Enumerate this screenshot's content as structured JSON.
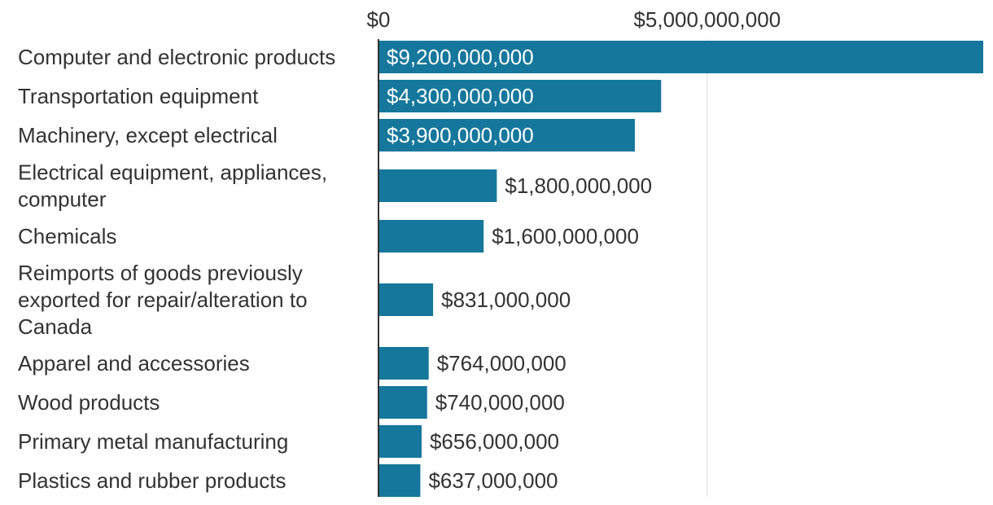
{
  "chart_data": {
    "type": "bar",
    "orientation": "horizontal",
    "categories": [
      "Computer and electronic products",
      "Transportation equipment",
      "Machinery, except electrical",
      "Electrical equipment, appliances, computer",
      "Chemicals",
      "Reimports of goods previously exported for repair/alteration to Canada",
      "Apparel and accessories",
      "Wood products",
      "Primary metal manufacturing",
      "Plastics and rubber products"
    ],
    "values": [
      9200000000,
      4300000000,
      3900000000,
      1800000000,
      1600000000,
      831000000,
      764000000,
      740000000,
      656000000,
      637000000
    ],
    "value_labels": [
      "$9,200,000,000",
      "$4,300,000,000",
      "$3,900,000,000",
      "$1,800,000,000",
      "$1,600,000,000",
      "$831,000,000",
      "$764,000,000",
      "$740,000,000",
      "$656,000,000",
      "$637,000,000"
    ],
    "x_ticks": [
      0,
      5000000000
    ],
    "x_tick_labels": [
      "$0",
      "$5,000,000,000"
    ],
    "xlim": [
      0,
      9200000000
    ],
    "grid": true,
    "title": "",
    "xlabel": "",
    "ylabel": "",
    "colors": {
      "bar": "#14779b",
      "text": "#333333",
      "label_inside": "#ffffff",
      "axis": "#333333",
      "grid": "#dddddd"
    }
  }
}
